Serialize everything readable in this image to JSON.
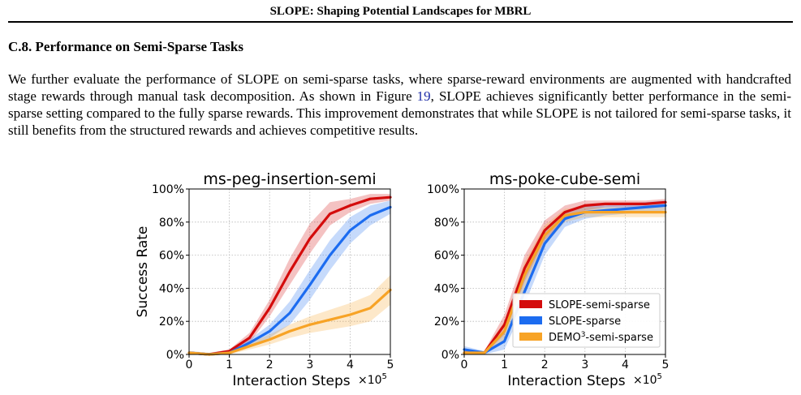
{
  "header": {
    "title": "SLOPE: Shaping Potential Landscapes for MBRL"
  },
  "section": {
    "title": "C.8. Performance on Semi-Sparse Tasks",
    "text_before_ref": "We further evaluate the performance of SLOPE on semi-sparse tasks, where sparse-reward environments are augmented with handcrafted stage rewards through manual task decomposition. As shown in Figure ",
    "figure_ref": "19",
    "text_after_ref": ", SLOPE achieves significantly better performance in the semi-sparse setting compared to the fully sparse rewards. This improvement demonstrates that while SLOPE is not tailored for semi-sparse tasks, it still benefits from the structured rewards and achieves competitive results."
  },
  "colors": {
    "red": "#d40c0c",
    "blue": "#1c6cf0",
    "orange": "#f7a326",
    "link": "#1f2ea8"
  },
  "chart_data": [
    {
      "type": "line",
      "title": "ms-peg-insertion-semi",
      "xlabel": "Interaction Steps",
      "x_multiplier": "×10",
      "x_multiplier_exp": "5",
      "ylabel": "Success Rate",
      "xlim": [
        0,
        5
      ],
      "ylim": [
        0,
        100
      ],
      "xticks": [
        "0",
        "1",
        "2",
        "3",
        "4",
        "5"
      ],
      "yticks": [
        "0%",
        "20%",
        "40%",
        "60%",
        "80%",
        "100%"
      ],
      "grid": true,
      "x": [
        0,
        0.5,
        1,
        1.5,
        2,
        2.5,
        3,
        3.5,
        4,
        4.5,
        5
      ],
      "series": [
        {
          "key": "semi",
          "values": [
            1,
            0,
            2,
            10,
            28,
            50,
            70,
            85,
            90,
            94,
            95
          ],
          "band": [
            0,
            1,
            1,
            3,
            5,
            8,
            9,
            7,
            4,
            3,
            2
          ],
          "color": "red"
        },
        {
          "key": "sparse",
          "values": [
            1,
            0,
            1,
            7,
            14,
            25,
            42,
            60,
            75,
            84,
            89
          ],
          "band": [
            1,
            1,
            1,
            2,
            4,
            7,
            9,
            9,
            8,
            6,
            4
          ],
          "color": "blue"
        },
        {
          "key": "demo",
          "values": [
            1,
            0,
            1,
            5,
            9,
            14,
            18,
            21,
            24,
            28,
            39
          ],
          "band": [
            1,
            1,
            1,
            2,
            3,
            4,
            5,
            6,
            7,
            8,
            9
          ],
          "color": "orange"
        }
      ]
    },
    {
      "type": "line",
      "title": "ms-poke-cube-semi",
      "xlabel": "Interaction Steps",
      "x_multiplier": "×10",
      "x_multiplier_exp": "5",
      "ylabel": "",
      "xlim": [
        0,
        5
      ],
      "ylim": [
        0,
        100
      ],
      "xticks": [
        "0",
        "1",
        "2",
        "3",
        "4",
        "5"
      ],
      "yticks": [
        "0%",
        "20%",
        "40%",
        "60%",
        "80%",
        "100%"
      ],
      "grid": true,
      "x": [
        0,
        0.5,
        1,
        1.5,
        2,
        2.5,
        3,
        3.5,
        4,
        4.5,
        5
      ],
      "series": [
        {
          "key": "semi",
          "values": [
            1,
            1,
            18,
            52,
            75,
            86,
            90,
            91,
            91,
            91,
            92
          ],
          "band": [
            1,
            1,
            6,
            8,
            6,
            4,
            3,
            2,
            2,
            2,
            2
          ],
          "color": "red"
        },
        {
          "key": "sparse",
          "values": [
            3,
            1,
            8,
            38,
            67,
            82,
            86,
            87,
            88,
            89,
            90
          ],
          "band": [
            2,
            1,
            5,
            8,
            7,
            5,
            4,
            3,
            3,
            3,
            3
          ],
          "color": "blue"
        },
        {
          "key": "demo",
          "values": [
            1,
            1,
            14,
            48,
            72,
            84,
            86,
            86,
            86,
            86,
            86
          ],
          "band": [
            1,
            1,
            6,
            8,
            6,
            4,
            3,
            3,
            3,
            3,
            3
          ],
          "color": "orange"
        }
      ],
      "legend": {
        "position": "lower-right",
        "items": [
          {
            "label": "SLOPE-semi-sparse",
            "color": "red"
          },
          {
            "label": "SLOPE-sparse",
            "color": "blue"
          },
          {
            "label": "DEMO",
            "sup": "3",
            "label_tail": "-semi-sparse",
            "color": "orange"
          }
        ]
      }
    }
  ]
}
